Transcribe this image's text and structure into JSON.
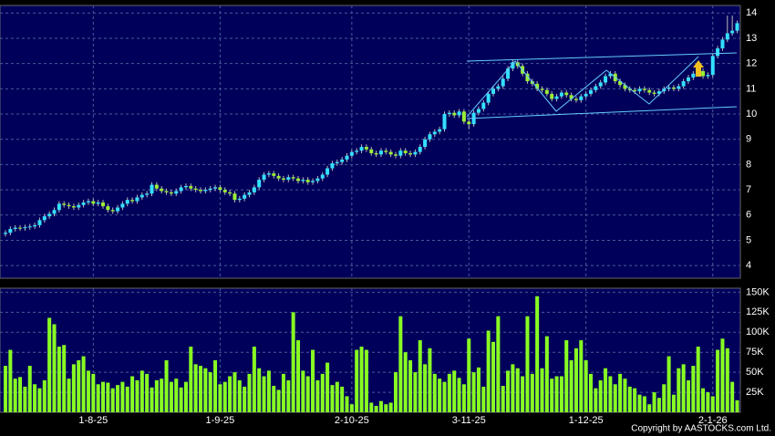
{
  "chart_data": {
    "type": "candlestick",
    "categories": [
      null,
      null,
      null,
      null,
      null,
      null,
      null,
      null,
      null,
      null,
      null,
      null,
      null,
      null,
      null,
      null,
      null,
      null,
      "1-8-25",
      null,
      null,
      null,
      null,
      null,
      null,
      null,
      null,
      null,
      null,
      null,
      null,
      null,
      null,
      null,
      null,
      null,
      null,
      null,
      null,
      null,
      null,
      null,
      null,
      null,
      "1-9-25",
      null,
      null,
      null,
      null,
      null,
      null,
      null,
      null,
      null,
      null,
      null,
      null,
      null,
      null,
      null,
      null,
      null,
      null,
      null,
      null,
      null,
      null,
      null,
      null,
      null,
      null,
      "2-10-25",
      null,
      null,
      null,
      null,
      null,
      null,
      null,
      null,
      null,
      null,
      null,
      null,
      null,
      null,
      null,
      null,
      null,
      null,
      null,
      null,
      null,
      null,
      null,
      "3-11-25",
      null,
      null,
      null,
      null,
      null,
      null,
      null,
      null,
      null,
      null,
      null,
      null,
      null,
      null,
      null,
      null,
      null,
      null,
      null,
      null,
      null,
      null,
      null,
      "1-12-25",
      null,
      null,
      null,
      null,
      null,
      null,
      null,
      null,
      null,
      null,
      null,
      null,
      null,
      null,
      null,
      null,
      null,
      null,
      null,
      null,
      null,
      null,
      null,
      null,
      null,
      "2-1-26",
      null,
      null,
      null,
      null,
      null
    ],
    "open": [
      5.25,
      5.3,
      5.45,
      5.5,
      5.48,
      5.52,
      5.55,
      5.6,
      5.8,
      5.95,
      6.05,
      6.2,
      6.45,
      6.4,
      6.35,
      6.3,
      6.4,
      6.5,
      6.55,
      6.45,
      6.5,
      6.35,
      6.2,
      6.15,
      6.3,
      6.45,
      6.6,
      6.55,
      6.7,
      6.8,
      6.85,
      7.2,
      7.05,
      6.95,
      6.9,
      6.85,
      6.95,
      7.1,
      7.15,
      7.05,
      7.0,
      6.95,
      7.0,
      7.05,
      7.1,
      7.0,
      6.9,
      6.85,
      6.6,
      6.65,
      6.8,
      6.9,
      7.1,
      7.4,
      7.6,
      7.65,
      7.55,
      7.45,
      7.4,
      7.5,
      7.45,
      7.35,
      7.4,
      7.3,
      7.35,
      7.45,
      7.6,
      7.85,
      8.05,
      8.1,
      8.2,
      8.35,
      8.5,
      8.55,
      8.7,
      8.6,
      8.45,
      8.4,
      8.55,
      8.5,
      8.4,
      8.35,
      8.55,
      8.45,
      8.4,
      8.5,
      8.7,
      9.0,
      9.2,
      9.3,
      9.4,
      10.0,
      10.05,
      9.95,
      10.1,
      9.7,
      9.6,
      10.05,
      10.2,
      10.45,
      10.8,
      11.0,
      11.1,
      11.4,
      11.8,
      12.05,
      11.9,
      11.6,
      11.3,
      11.2,
      11.0,
      10.95,
      10.8,
      10.6,
      10.7,
      10.85,
      10.75,
      10.6,
      10.55,
      10.7,
      10.8,
      10.95,
      11.1,
      11.25,
      11.5,
      11.6,
      11.3,
      11.15,
      11.0,
      10.95,
      10.9,
      11.0,
      10.95,
      10.85,
      10.8,
      10.9,
      11.0,
      11.05,
      11.0,
      11.1,
      11.3,
      11.45,
      11.6,
      11.7,
      11.5,
      11.55,
      12.3,
      12.6,
      12.95,
      13.2,
      13.3
    ],
    "high": [
      5.4,
      5.55,
      5.6,
      5.6,
      5.62,
      5.65,
      5.7,
      5.9,
      6.05,
      6.15,
      6.3,
      6.55,
      6.55,
      6.5,
      6.45,
      6.5,
      6.6,
      6.65,
      6.65,
      6.6,
      6.6,
      6.45,
      6.3,
      6.4,
      6.55,
      6.7,
      6.7,
      6.8,
      6.9,
      6.95,
      7.3,
      7.3,
      7.15,
      7.05,
      7.0,
      7.05,
      7.2,
      7.25,
      7.25,
      7.15,
      7.1,
      7.1,
      7.15,
      7.2,
      7.2,
      7.1,
      7.0,
      6.95,
      6.75,
      6.9,
      7.0,
      7.2,
      7.5,
      7.7,
      7.75,
      7.75,
      7.65,
      7.55,
      7.6,
      7.6,
      7.55,
      7.5,
      7.5,
      7.45,
      7.55,
      7.7,
      7.95,
      8.15,
      8.2,
      8.3,
      8.45,
      8.6,
      8.65,
      8.8,
      8.8,
      8.7,
      8.55,
      8.65,
      8.65,
      8.6,
      8.5,
      8.65,
      8.65,
      8.55,
      8.6,
      8.8,
      9.1,
      9.3,
      9.4,
      9.5,
      10.1,
      10.15,
      10.15,
      10.2,
      10.2,
      9.8,
      10.15,
      10.3,
      10.55,
      10.9,
      11.1,
      11.2,
      11.5,
      11.9,
      12.15,
      12.15,
      12.0,
      11.7,
      11.4,
      11.3,
      11.1,
      11.05,
      10.9,
      10.8,
      10.95,
      10.95,
      10.85,
      10.7,
      10.8,
      10.9,
      11.05,
      11.2,
      11.35,
      11.6,
      11.7,
      11.7,
      11.4,
      11.25,
      11.1,
      11.05,
      11.1,
      11.1,
      11.05,
      10.95,
      11.0,
      11.1,
      11.15,
      11.15,
      11.2,
      11.4,
      11.55,
      11.7,
      11.8,
      11.8,
      11.65,
      12.4,
      12.7,
      13.05,
      13.9,
      13.9,
      13.7
    ],
    "low": [
      5.15,
      5.2,
      5.35,
      5.38,
      5.38,
      5.42,
      5.45,
      5.5,
      5.7,
      5.85,
      5.95,
      6.1,
      6.3,
      6.25,
      6.2,
      6.2,
      6.3,
      6.4,
      6.35,
      6.35,
      6.25,
      6.1,
      6.05,
      6.05,
      6.2,
      6.35,
      6.45,
      6.45,
      6.6,
      6.7,
      6.75,
      6.95,
      6.85,
      6.8,
      6.75,
      6.75,
      6.85,
      7.0,
      6.95,
      6.9,
      6.85,
      6.85,
      6.9,
      6.95,
      6.9,
      6.8,
      6.75,
      6.5,
      6.5,
      6.55,
      6.7,
      6.8,
      7.0,
      7.3,
      7.5,
      7.45,
      7.35,
      7.3,
      7.3,
      7.35,
      7.25,
      7.25,
      7.2,
      7.2,
      7.25,
      7.35,
      7.5,
      7.75,
      7.95,
      8.0,
      8.1,
      8.25,
      8.4,
      8.45,
      8.5,
      8.35,
      8.3,
      8.3,
      8.4,
      8.3,
      8.25,
      8.25,
      8.35,
      8.3,
      8.3,
      8.4,
      8.6,
      8.9,
      9.1,
      9.2,
      9.3,
      9.9,
      9.85,
      9.85,
      9.6,
      9.4,
      9.5,
      9.95,
      10.1,
      10.35,
      10.7,
      10.9,
      11.0,
      11.3,
      11.7,
      11.8,
      11.5,
      11.2,
      11.1,
      10.9,
      10.85,
      10.7,
      10.5,
      10.5,
      10.6,
      10.65,
      10.5,
      10.45,
      10.45,
      10.6,
      10.7,
      10.85,
      11.0,
      11.15,
      11.4,
      11.2,
      11.05,
      10.9,
      10.85,
      10.8,
      10.8,
      10.85,
      10.75,
      10.7,
      10.7,
      10.8,
      10.9,
      10.9,
      10.9,
      11.0,
      11.2,
      11.35,
      11.5,
      11.4,
      11.4,
      11.45,
      12.2,
      12.5,
      12.85,
      13.1,
      13.2
    ],
    "close": [
      5.3,
      5.45,
      5.5,
      5.48,
      5.52,
      5.55,
      5.6,
      5.8,
      5.95,
      6.05,
      6.2,
      6.45,
      6.4,
      6.35,
      6.3,
      6.4,
      6.5,
      6.55,
      6.45,
      6.5,
      6.35,
      6.2,
      6.15,
      6.3,
      6.45,
      6.6,
      6.55,
      6.7,
      6.8,
      6.85,
      7.2,
      7.05,
      6.95,
      6.9,
      6.85,
      6.95,
      7.1,
      7.15,
      7.05,
      7.0,
      6.95,
      7.0,
      7.05,
      7.1,
      7.0,
      6.9,
      6.85,
      6.6,
      6.65,
      6.8,
      6.9,
      7.1,
      7.4,
      7.6,
      7.65,
      7.55,
      7.45,
      7.4,
      7.5,
      7.45,
      7.35,
      7.4,
      7.3,
      7.35,
      7.45,
      7.6,
      7.85,
      8.05,
      8.1,
      8.2,
      8.35,
      8.5,
      8.55,
      8.7,
      8.6,
      8.45,
      8.4,
      8.55,
      8.5,
      8.4,
      8.35,
      8.55,
      8.45,
      8.4,
      8.5,
      8.7,
      9.0,
      9.2,
      9.3,
      9.4,
      10.0,
      10.05,
      9.95,
      10.1,
      9.7,
      9.6,
      10.05,
      10.2,
      10.45,
      10.8,
      11.0,
      11.1,
      11.4,
      11.8,
      12.05,
      11.9,
      11.6,
      11.3,
      11.2,
      11.0,
      10.95,
      10.8,
      10.6,
      10.7,
      10.85,
      10.75,
      10.6,
      10.55,
      10.7,
      10.8,
      10.95,
      11.1,
      11.25,
      11.5,
      11.6,
      11.3,
      11.15,
      11.0,
      10.95,
      10.9,
      11.0,
      10.95,
      10.85,
      10.8,
      10.9,
      11.0,
      11.05,
      11.0,
      11.1,
      11.3,
      11.45,
      11.6,
      11.7,
      11.5,
      11.55,
      12.3,
      12.6,
      12.95,
      13.2,
      13.3,
      13.6
    ],
    "volume": [
      58000,
      78000,
      42000,
      44000,
      32000,
      58000,
      35000,
      30000,
      40000,
      118000,
      110000,
      82000,
      84000,
      42000,
      60000,
      65000,
      70000,
      52000,
      48000,
      35000,
      38000,
      37000,
      30000,
      34000,
      38000,
      32000,
      45000,
      40000,
      52000,
      48000,
      31000,
      40000,
      42000,
      65000,
      38000,
      42000,
      31000,
      38000,
      82000,
      60000,
      58000,
      55000,
      50000,
      65000,
      35000,
      38000,
      45000,
      50000,
      40000,
      32000,
      48000,
      82000,
      55000,
      45000,
      52000,
      33000,
      28000,
      48000,
      40000,
      125000,
      90000,
      52000,
      45000,
      78000,
      40000,
      48000,
      62000,
      34000,
      38000,
      32000,
      20000,
      10000,
      78000,
      82000,
      78000,
      12000,
      8000,
      14000,
      10000,
      12000,
      50000,
      120000,
      75000,
      65000,
      50000,
      90000,
      60000,
      80000,
      48000,
      42000,
      38000,
      48000,
      52000,
      43000,
      35000,
      92000,
      50000,
      56000,
      32000,
      102000,
      88000,
      120000,
      33000,
      52000,
      60000,
      55000,
      45000,
      120000,
      48000,
      145000,
      55000,
      95000,
      42000,
      45000,
      45000,
      90000,
      65000,
      80000,
      90000,
      65000,
      48000,
      30000,
      40000,
      55000,
      45000,
      35000,
      48000,
      42000,
      32000,
      30000,
      22000,
      20000,
      10000,
      25000,
      18000,
      35000,
      70000,
      22000,
      55000,
      60000,
      40000,
      58000,
      82000,
      30000,
      25000,
      20000,
      78000,
      92000,
      80000,
      38000,
      15000
    ],
    "ylim": [
      3.5,
      14.3
    ],
    "yticks": [
      4,
      5,
      6,
      7,
      8,
      9,
      10,
      11,
      12,
      13,
      14
    ],
    "volume_ylim": [
      0,
      155000
    ],
    "volume_yticks": [
      {
        "value": 25000,
        "label": "25K"
      },
      {
        "value": 50000,
        "label": "50K"
      },
      {
        "value": 75000,
        "label": "75K"
      },
      {
        "value": 100000,
        "label": "100K"
      },
      {
        "value": 125000,
        "label": "125K"
      },
      {
        "value": 150000,
        "label": "150K"
      }
    ],
    "up_color": "#33e0ff",
    "down_color": "#99ee33",
    "volume_color": "#88ff22",
    "grid": true,
    "copyright": "Copyright by AASTOCKS.com Ltd."
  }
}
